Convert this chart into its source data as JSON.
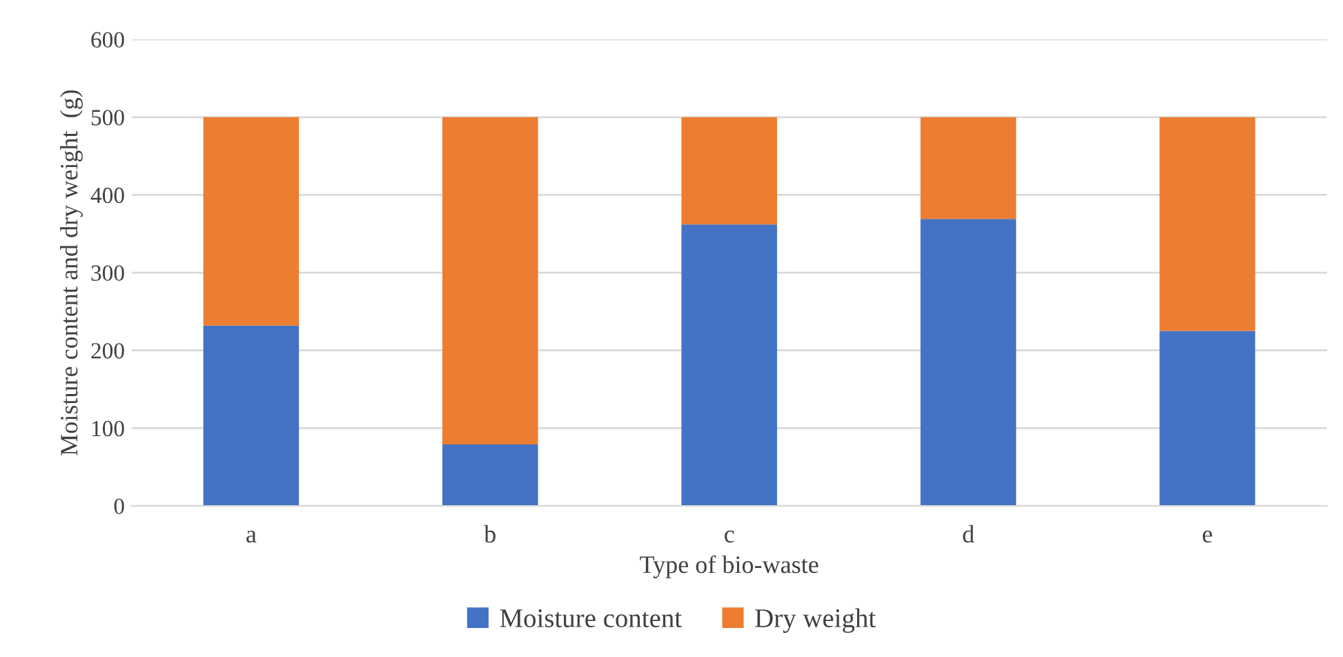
{
  "chart_data": {
    "type": "bar",
    "stacked": true,
    "xlabel": "Type of bio-waste",
    "ylabel": "Moisture content and dry weight  (g)",
    "categories": [
      "a",
      "b",
      "c",
      "d",
      "e"
    ],
    "series": [
      {
        "name": "Moisture content",
        "color": "#4472c4",
        "values": [
          232,
          79,
          362,
          369,
          225
        ]
      },
      {
        "name": "Dry weight",
        "color": "#ed7d31",
        "values": [
          268,
          421,
          138,
          131,
          275
        ]
      }
    ],
    "ylim": [
      0,
      600
    ],
    "yticks": [
      0,
      100,
      200,
      300,
      400,
      500,
      600
    ],
    "grid": "y",
    "legend": "bottom"
  }
}
